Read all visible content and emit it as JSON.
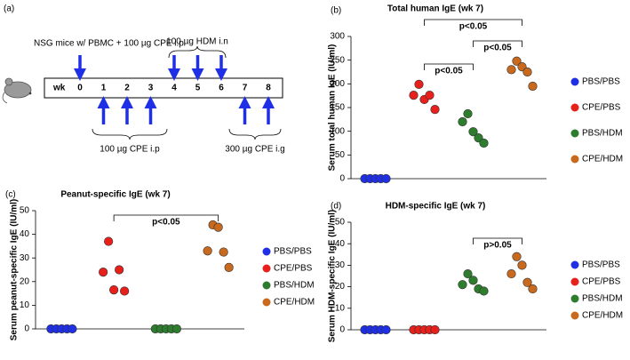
{
  "panel_a": {
    "label": "(a)",
    "top_note": "NSG mice w/ PBMC + 100 µg CPE i.p",
    "hdm_note": "100 µg HDM i.n",
    "axis_label": "wk",
    "weeks": [
      0,
      1,
      2,
      3,
      4,
      5,
      6,
      7,
      8
    ],
    "cpe_ip_note": "100 µg CPE i.p",
    "cpe_ig_note": "300 µg CPE i.g"
  },
  "chart_data": [
    {
      "type": "dot",
      "panel_label": "(b)",
      "title": "Total human IgE (wk 7)",
      "y_label": "Serum total human IgE (IU/ml)",
      "ylim": [
        0,
        300
      ],
      "yticks": [
        0,
        50,
        100,
        150,
        200,
        250,
        300
      ],
      "legend": "right",
      "series": [
        {
          "name": "PBS/PBS",
          "color": "#1f2fe6",
          "values": [
            0,
            0,
            0,
            0,
            0
          ]
        },
        {
          "name": "CPE/PBS",
          "color": "#e8201c",
          "values": [
            176,
            199,
            167,
            176,
            146
          ]
        },
        {
          "name": "PBS/HDM",
          "color": "#2e7d2e",
          "values": [
            120,
            137,
            99,
            86,
            75
          ]
        },
        {
          "name": "CPE/HDM",
          "color": "#c8691e",
          "values": [
            230,
            248,
            236,
            225,
            195
          ]
        }
      ],
      "comparisons": [
        {
          "label": "p<0.05",
          "groups": [
            "CPE/PBS",
            "PBS/HDM"
          ]
        },
        {
          "label": "p<0.05",
          "groups": [
            "CPE/PBS",
            "CPE/HDM"
          ]
        },
        {
          "label": "p<0.05",
          "groups": [
            "PBS/HDM",
            "CPE/HDM"
          ]
        }
      ]
    },
    {
      "type": "dot",
      "panel_label": "(c)",
      "title": "Peanut-specific IgE (wk 7)",
      "y_label": "Serum peanut-specific IgE (IU/ml)",
      "ylim": [
        0,
        50
      ],
      "yticks": [
        0,
        10,
        20,
        30,
        40,
        50
      ],
      "legend": "right",
      "series": [
        {
          "name": "PBS/PBS",
          "color": "#1f2fe6",
          "values": [
            0,
            0,
            0,
            0,
            0
          ]
        },
        {
          "name": "CPE/PBS",
          "color": "#e8201c",
          "values": [
            24,
            37,
            16.5,
            25,
            16
          ]
        },
        {
          "name": "PBS/HDM",
          "color": "#2e7d2e",
          "values": [
            0,
            0,
            0,
            0,
            0
          ]
        },
        {
          "name": "CPE/HDM",
          "color": "#c8691e",
          "values": [
            33,
            44,
            43,
            32.5,
            26
          ]
        }
      ],
      "comparisons": [
        {
          "label": "p<0.05",
          "groups": [
            "CPE/PBS",
            "CPE/HDM"
          ]
        }
      ]
    },
    {
      "type": "dot",
      "panel_label": "(d)",
      "title": "HDM-specific IgE (wk 7)",
      "y_label": "Serum HDM-specific IgE (IU/ml)",
      "ylim": [
        0,
        50
      ],
      "yticks": [
        0,
        10,
        20,
        30,
        40,
        50
      ],
      "legend": "right",
      "series": [
        {
          "name": "PBS/PBS",
          "color": "#1f2fe6",
          "values": [
            0,
            0,
            0,
            0,
            0
          ]
        },
        {
          "name": "CPE/PBS",
          "color": "#e8201c",
          "values": [
            0,
            0,
            0,
            0,
            0
          ]
        },
        {
          "name": "PBS/HDM",
          "color": "#2e7d2e",
          "values": [
            21,
            26,
            23,
            19,
            18
          ]
        },
        {
          "name": "CPE/HDM",
          "color": "#c8691e",
          "values": [
            26,
            34,
            30,
            22,
            19
          ]
        }
      ],
      "comparisons": [
        {
          "label": "p>0.05",
          "groups": [
            "PBS/HDM",
            "CPE/HDM"
          ]
        }
      ]
    }
  ]
}
